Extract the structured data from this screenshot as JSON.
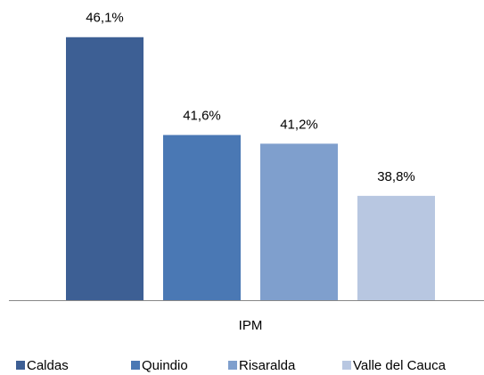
{
  "chart_data": {
    "type": "bar",
    "categories": [
      "IPM"
    ],
    "series": [
      {
        "name": "Caldas",
        "color": "#3d5f94",
        "values": [
          46.1
        ],
        "value_labels": [
          "46,1%"
        ]
      },
      {
        "name": "Quindio",
        "color": "#4a78b4",
        "values": [
          41.6
        ],
        "value_labels": [
          "41,6%"
        ]
      },
      {
        "name": "Risaralda",
        "color": "#7f9fcd",
        "values": [
          41.2
        ],
        "value_labels": [
          "41,2%"
        ]
      },
      {
        "name": "Valle del Cauca",
        "color": "#b8c7e1",
        "values": [
          38.8
        ],
        "value_labels": [
          "38,8%"
        ]
      }
    ],
    "ylim": [
      34,
      47
    ],
    "legend": "bottom"
  }
}
